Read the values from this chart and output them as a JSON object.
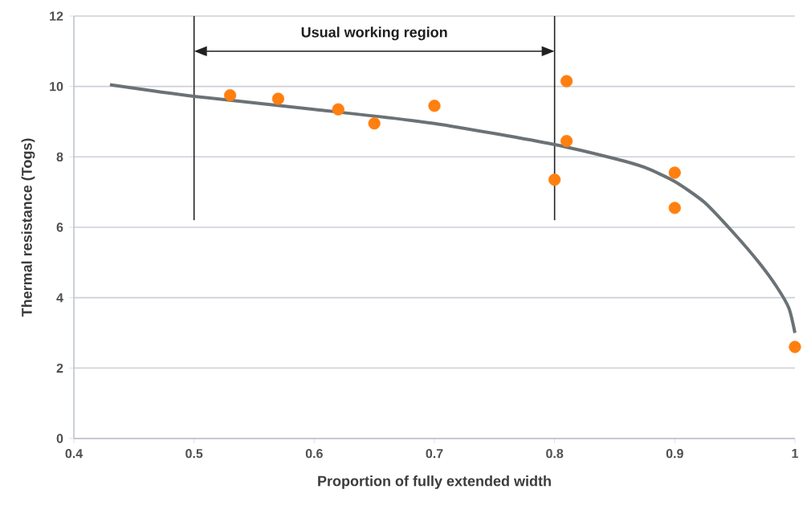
{
  "chart_data": {
    "type": "scatter",
    "xlabel": "Proportion of fully extended width",
    "ylabel": "Thermal resistance (Togs)",
    "xlim": [
      0.4,
      1.0
    ],
    "ylim": [
      0,
      12
    ],
    "xticks": [
      0.4,
      0.5,
      0.6,
      0.7,
      0.8,
      0.9,
      {
        "value": 1.0,
        "label": "1"
      }
    ],
    "yticks": [
      0,
      2,
      4,
      6,
      8,
      10,
      12
    ],
    "grid": "y",
    "series": [
      {
        "marker": "circle",
        "color": "#ff7f0f",
        "x": [
          0.53,
          0.57,
          0.62,
          0.65,
          0.7,
          0.81,
          0.81,
          0.8,
          0.9,
          0.9,
          1.0
        ],
        "values": [
          9.75,
          9.65,
          9.35,
          8.95,
          9.45,
          10.15,
          8.45,
          7.35,
          7.55,
          6.55,
          2.6
        ]
      },
      {
        "type": "line",
        "marker": "none",
        "color": "#6b7276",
        "x": [
          0.43,
          0.5,
          0.6,
          0.7,
          0.8,
          0.85,
          0.875,
          0.9,
          0.925,
          0.95,
          0.97,
          0.985,
          0.995,
          1.0
        ],
        "values": [
          10.05,
          9.72,
          9.35,
          8.95,
          8.35,
          7.95,
          7.7,
          7.3,
          6.7,
          5.8,
          5.0,
          4.3,
          3.7,
          3.0
        ]
      }
    ],
    "ref_lines": [
      {
        "axis": "x",
        "value": 0.5,
        "color": "#222222"
      },
      {
        "axis": "x",
        "value": 0.8,
        "color": "#222222"
      }
    ],
    "annotations": [
      "Usual working region"
    ]
  }
}
